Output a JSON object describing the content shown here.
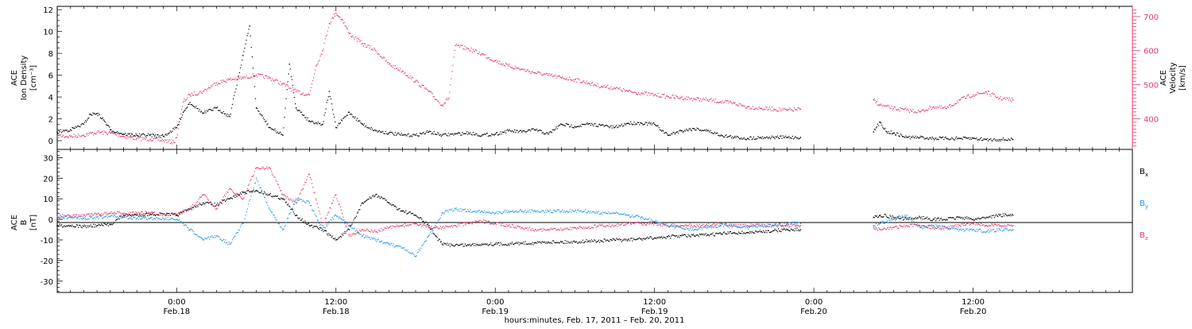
{
  "colors": {
    "black": "#000000",
    "red": "#e8396a",
    "blue": "#2196f0"
  },
  "x_axis": {
    "tick_labels": [
      {
        "hour": 24,
        "time": "0:00",
        "date": "Feb.18"
      },
      {
        "hour": 36,
        "time": "12:00",
        "date": "Feb.18"
      },
      {
        "hour": 48,
        "time": "0:00",
        "date": "Feb.19"
      },
      {
        "hour": 60,
        "time": "12:00",
        "date": "Feb.19"
      },
      {
        "hour": 72,
        "time": "0:00",
        "date": "Feb.20"
      },
      {
        "hour": 84,
        "time": "12:00",
        "date": "Feb.20"
      }
    ],
    "title": "hours:minutes, Feb. 17, 2011 – Feb. 20, 2011"
  },
  "chart_data": [
    {
      "type": "scatter",
      "panel": "top",
      "xlim": [
        15,
        96
      ],
      "ylabel_left": [
        "ACE",
        "Ion Density",
        "[cm⁻³]"
      ],
      "ylabel_right": [
        "ACE",
        "Velocity",
        "[km/s]"
      ],
      "ylim_left": [
        -0.8,
        12.3
      ],
      "yticks_left": [
        0,
        2,
        4,
        6,
        8,
        10,
        12
      ],
      "ylim_right": [
        310,
        730
      ],
      "yticks_right": [
        400,
        500,
        600,
        700
      ],
      "series": [
        {
          "axis": "left",
          "color": "black",
          "x": [
            15,
            16,
            17,
            17.5,
            18,
            18.5,
            19,
            20,
            21,
            22,
            23,
            24,
            24.5,
            25,
            26,
            27,
            28,
            29,
            29.5,
            30,
            31,
            32,
            32.5,
            33,
            34,
            35,
            35.5,
            36,
            37,
            38,
            39,
            40,
            41,
            42,
            43,
            44,
            45,
            46,
            47,
            48,
            49,
            50,
            51,
            52,
            53,
            54,
            55,
            56,
            57,
            58,
            59,
            60,
            61,
            62,
            63,
            64,
            65,
            66,
            67,
            68,
            69,
            70,
            71,
            76.5,
            77,
            77.5,
            78,
            79,
            80,
            81,
            82,
            83,
            84,
            85,
            86,
            87
          ],
          "y": [
            0.8,
            1.0,
            1.5,
            2.4,
            2.5,
            1.9,
            1.0,
            0.6,
            0.5,
            0.5,
            0.4,
            1.2,
            2.6,
            3.5,
            2.5,
            3.0,
            2.2,
            7.8,
            10.5,
            3.0,
            1.2,
            0.5,
            7.0,
            3.0,
            1.8,
            1.5,
            4.5,
            1.2,
            2.6,
            1.5,
            0.9,
            0.7,
            0.5,
            0.5,
            0.8,
            0.5,
            0.6,
            0.7,
            0.5,
            0.6,
            0.9,
            0.8,
            1.0,
            0.6,
            1.5,
            1.3,
            1.5,
            1.4,
            1.2,
            1.6,
            1.6,
            1.5,
            0.5,
            0.9,
            1.1,
            0.9,
            0.5,
            0.3,
            0.2,
            0.3,
            0.3,
            0.3,
            0.3,
            0.8,
            1.7,
            0.8,
            0.7,
            0.3,
            0.3,
            0.2,
            0.2,
            0.2,
            0.2,
            0.1,
            0.1,
            0.1
          ]
        },
        {
          "axis": "right",
          "color": "red",
          "x": [
            15,
            16,
            17,
            18,
            19,
            20,
            21,
            22,
            23,
            23.8,
            24,
            24.5,
            25,
            26,
            27,
            28,
            29,
            30,
            31,
            32,
            33,
            34,
            34.5,
            35,
            35.5,
            36,
            36.5,
            37,
            38,
            39,
            40,
            41,
            42,
            43,
            44,
            44.5,
            45,
            46,
            47,
            48,
            49,
            50,
            51,
            52,
            53,
            54,
            55,
            56,
            57,
            58,
            59,
            60,
            61,
            62,
            63,
            64,
            65,
            66,
            67,
            68,
            69,
            70,
            71,
            76.5,
            77,
            78,
            79,
            80,
            81,
            82,
            83,
            84,
            85,
            86,
            87
          ],
          "y": [
            350,
            348,
            352,
            360,
            358,
            348,
            342,
            340,
            336,
            330,
            345,
            450,
            470,
            480,
            505,
            515,
            520,
            528,
            520,
            502,
            480,
            470,
            555,
            600,
            680,
            710,
            690,
            650,
            620,
            600,
            560,
            540,
            510,
            480,
            440,
            460,
            615,
            605,
            590,
            570,
            555,
            545,
            535,
            528,
            520,
            515,
            505,
            495,
            490,
            480,
            475,
            470,
            465,
            462,
            458,
            455,
            450,
            445,
            435,
            430,
            428,
            425,
            428,
            455,
            440,
            430,
            425,
            420,
            435,
            430,
            455,
            470,
            478,
            460,
            455
          ]
        }
      ]
    },
    {
      "type": "scatter",
      "panel": "bottom",
      "xlim": [
        15,
        96
      ],
      "ylabel_left": [
        "ACE",
        "B",
        "[nT]"
      ],
      "ylim": [
        -35.5,
        34
      ],
      "yticks": [
        -30,
        -20,
        -10,
        0,
        10,
        20,
        30
      ],
      "series": [
        {
          "name": "Bx",
          "color": "black",
          "x": [
            15,
            16,
            17,
            18,
            19,
            20,
            21,
            22,
            23,
            24,
            25,
            26,
            27,
            28,
            29,
            30,
            31,
            32,
            33,
            34,
            35,
            36,
            37,
            38,
            39,
            40,
            41,
            42,
            43,
            43.5,
            44,
            45,
            46,
            47,
            48,
            49,
            50,
            51,
            52,
            53,
            54,
            55,
            56,
            57,
            58,
            59,
            60,
            61,
            62,
            63,
            64,
            65,
            66,
            67,
            68,
            69,
            70,
            71,
            76.5,
            77,
            78,
            79,
            80,
            81,
            82,
            83,
            84,
            85,
            86,
            87
          ],
          "y": [
            -3,
            -3,
            -3.5,
            -3,
            -2.5,
            2,
            2,
            2.5,
            2.5,
            2,
            5,
            8,
            7,
            10,
            13,
            14,
            12,
            10,
            2,
            -3,
            -5,
            -10,
            -5,
            8,
            12,
            8,
            4,
            2,
            -3,
            -8,
            -12,
            -12.5,
            -12.5,
            -12,
            -12,
            -12,
            -11.5,
            -11.5,
            -11,
            -11,
            -11,
            -10.5,
            -10.5,
            -10,
            -10,
            -9.5,
            -9,
            -8.5,
            -8,
            -8,
            -7.5,
            -7,
            -6.5,
            -6.5,
            -6,
            -5.5,
            -5,
            -5,
            1,
            2,
            1,
            0,
            1,
            0,
            0,
            1,
            0,
            1,
            2,
            2
          ]
        },
        {
          "name": "By",
          "color": "blue",
          "x": [
            15,
            16,
            17,
            18,
            19,
            20,
            21,
            22,
            23,
            24,
            25,
            26,
            27,
            28,
            29,
            30,
            31,
            32,
            33,
            34,
            35,
            36,
            37,
            38,
            39,
            40,
            41,
            42,
            43,
            43.5,
            44,
            45,
            46,
            47,
            48,
            49,
            50,
            51,
            52,
            53,
            54,
            55,
            56,
            57,
            58,
            59,
            60,
            61,
            62,
            63,
            64,
            65,
            66,
            67,
            68,
            69,
            70,
            71,
            76.5,
            77,
            78,
            79,
            80,
            81,
            82,
            83,
            84,
            85,
            86,
            87
          ],
          "y": [
            1,
            1,
            0.5,
            1,
            1.5,
            1,
            0.5,
            0.5,
            0.5,
            0,
            -5,
            -10,
            -8,
            -12,
            -2,
            20,
            5,
            -5,
            10,
            8,
            -5,
            2,
            -3,
            -8,
            -10,
            -12,
            -14,
            -18,
            -8,
            -3,
            3,
            5,
            4,
            4,
            3,
            4,
            4,
            4,
            4,
            4,
            4,
            4,
            3,
            3,
            2,
            1,
            -1,
            -3,
            -4,
            -5,
            -4,
            -3,
            -3,
            -4,
            -3,
            -3,
            -2,
            -2,
            -3,
            -2,
            0,
            2,
            -4,
            -3,
            -4,
            -5,
            -5,
            -6,
            -5,
            -5
          ]
        },
        {
          "name": "Bz",
          "color": "red",
          "x": [
            15,
            16,
            17,
            18,
            19,
            20,
            21,
            22,
            23,
            24,
            25,
            26,
            27,
            28,
            29,
            30,
            31,
            32,
            33,
            34,
            35,
            36,
            37,
            38,
            39,
            40,
            41,
            42,
            43,
            43.5,
            44,
            45,
            46,
            47,
            48,
            49,
            50,
            51,
            52,
            53,
            54,
            55,
            56,
            57,
            58,
            59,
            60,
            61,
            62,
            63,
            64,
            65,
            66,
            67,
            68,
            69,
            70,
            71,
            76.5,
            77,
            78,
            79,
            80,
            81,
            82,
            83,
            84,
            85,
            86,
            87
          ],
          "y": [
            1.5,
            1.5,
            2,
            2.5,
            3,
            3,
            3,
            3,
            2.5,
            2.5,
            5,
            12,
            5,
            15,
            10,
            25,
            25,
            12,
            8,
            22,
            -3,
            12,
            -8,
            -5,
            -6,
            -4,
            -3,
            -2,
            -4,
            -4,
            -4,
            -3,
            -2,
            -1,
            -2,
            -3,
            -4,
            -5,
            -5,
            -5,
            -4,
            -4,
            -3,
            -3,
            -2,
            -2,
            -2,
            -3,
            -3,
            -3,
            -3,
            -2,
            -3,
            -3,
            -3,
            -3,
            -3,
            -3,
            -4,
            -5,
            -4,
            -3,
            -3,
            -4,
            -4,
            -3,
            -2,
            -3,
            -3,
            -3
          ]
        }
      ]
    }
  ]
}
